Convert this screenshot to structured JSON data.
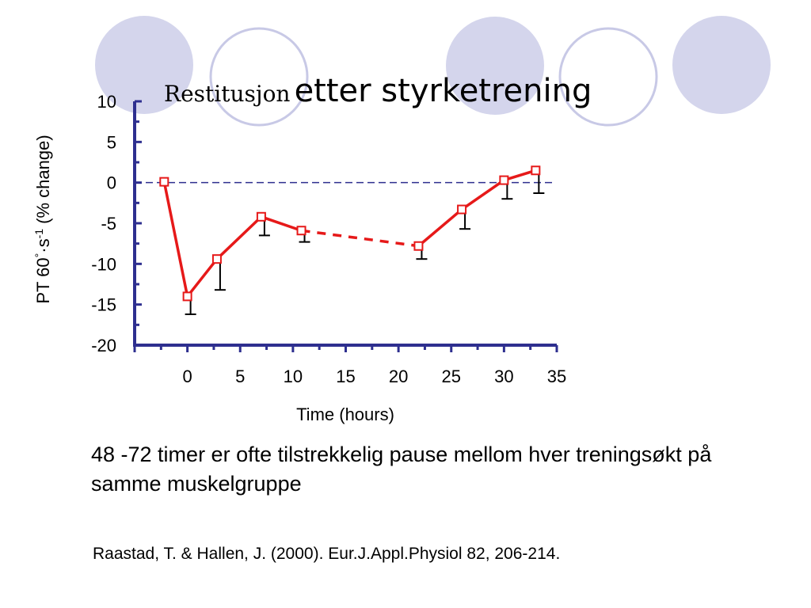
{
  "slide": {
    "title_small": "Restitusjon",
    "title_large": "etter styrketrening",
    "body": "48 -72 timer er ofte tilstrekkelig pause mellom hver treningsøkt på samme muskelgruppe",
    "citation": "Raastad, T. & Hallen, J. (2000). Eur.J.Appl.Physiol 82, 206-214."
  },
  "colors": {
    "circle_fill": "#d4d5ec",
    "circle_ring": "#c8c9e6",
    "axis": "#2e2f8f",
    "series": "#e61919",
    "marker_fill": "#ffffff",
    "reference_line": "#2e2f8f",
    "error_bar": "#000000"
  },
  "chart_data": {
    "type": "line",
    "xlabel": "Time (hours)",
    "ylabel_parts": [
      "PT 60",
      "°",
      "·s",
      "-1",
      " (% change)"
    ],
    "xlim": [
      -5,
      35
    ],
    "ylim": [
      -20,
      10
    ],
    "xticks": [
      0,
      5,
      10,
      15,
      20,
      25,
      30,
      35
    ],
    "yticks": [
      10,
      5,
      0,
      -5,
      -10,
      -15,
      -20
    ],
    "reference_line_y": 0,
    "grid": false,
    "series": [
      {
        "x": [
          -2.2,
          0,
          2.8,
          7,
          10.8,
          21.9,
          26,
          30,
          33
        ],
        "values": [
          0.1,
          -14,
          -9.4,
          -4.2,
          -5.9,
          -7.8,
          -3.3,
          0.3,
          1.5
        ],
        "error": [
          null,
          2.2,
          3.8,
          2.3,
          1.4,
          1.6,
          2.4,
          2.3,
          2.8
        ],
        "dashed_segments": [
          4
        ]
      }
    ]
  }
}
